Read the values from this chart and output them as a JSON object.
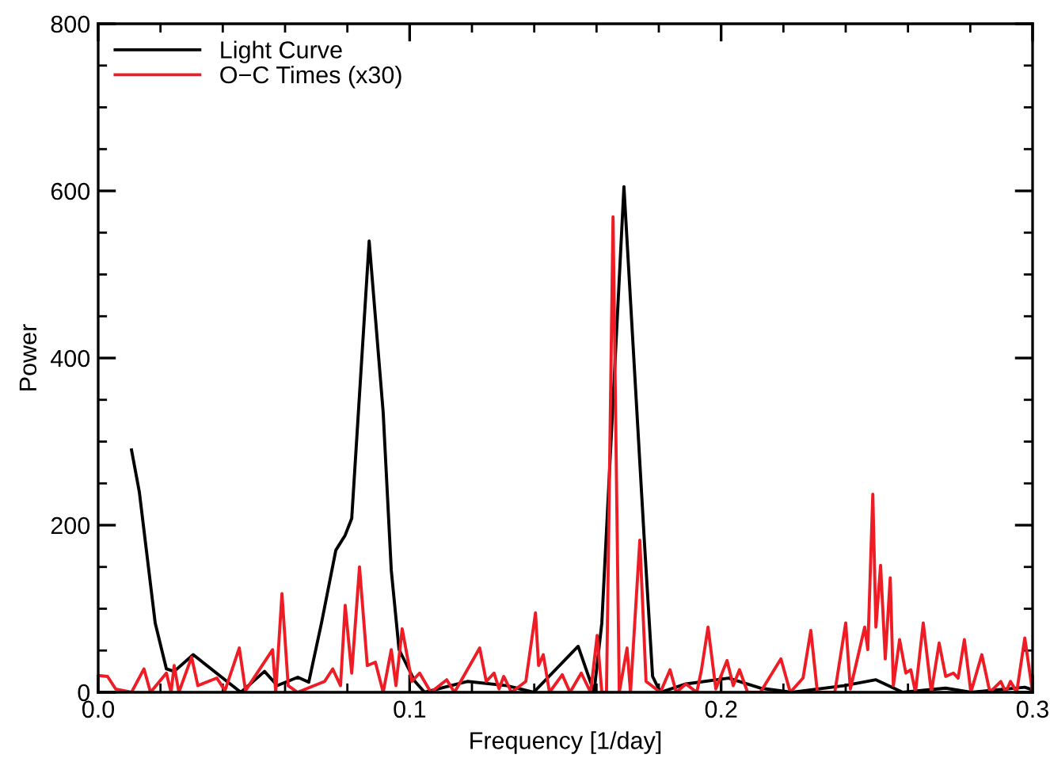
{
  "chart_data": {
    "type": "line",
    "xlabel": "Frequency [1/day]",
    "ylabel": "Power",
    "xlim": [
      0.0,
      0.3
    ],
    "xticks": [
      {
        "value": 0.0,
        "label": "0.0"
      },
      {
        "value": 0.1,
        "label": "0.1"
      },
      {
        "value": 0.2,
        "label": "0.2"
      },
      {
        "value": 0.3,
        "label": "0.3"
      }
    ],
    "ylim": [
      0,
      800
    ],
    "yticks": [
      0,
      200,
      400,
      600,
      800
    ],
    "grid": false,
    "legend": "top left",
    "marker": "none",
    "line_style": "solid",
    "series": [
      {
        "name": "Light Curve",
        "color": "#000000",
        "x": [
          0.0107,
          0.0132,
          0.0183,
          0.0219,
          0.0244,
          0.0305,
          0.0458,
          0.0534,
          0.0575,
          0.0641,
          0.0676,
          0.0717,
          0.0763,
          0.0793,
          0.0814,
          0.087,
          0.0915,
          0.0941,
          0.0966,
          0.1017,
          0.1048,
          0.1185,
          0.1312,
          0.1398,
          0.1541,
          0.1592,
          0.1617,
          0.1688,
          0.1754,
          0.178,
          0.1805,
          0.1887,
          0.2024,
          0.2126,
          0.2227,
          0.2395,
          0.2497,
          0.2583,
          0.2721,
          0.2802,
          0.2975,
          0.3
        ],
        "values": [
          290,
          240,
          83,
          28,
          25,
          45,
          0,
          25,
          8,
          18,
          12,
          83,
          170,
          188,
          208,
          540,
          335,
          146,
          51,
          13,
          0,
          13,
          8,
          0,
          55,
          0,
          83,
          605,
          178,
          19,
          0,
          10,
          17,
          5,
          0,
          8,
          15,
          0,
          5,
          0,
          6,
          3
        ]
      },
      {
        "name": "O−C Times (x30)",
        "color": "#ee1c25",
        "x": [
          0.0005,
          0.003,
          0.0056,
          0.0107,
          0.0147,
          0.0168,
          0.0219,
          0.0234,
          0.0244,
          0.0259,
          0.03,
          0.032,
          0.0381,
          0.0407,
          0.0453,
          0.0473,
          0.056,
          0.057,
          0.059,
          0.061,
          0.064,
          0.0727,
          0.0753,
          0.0778,
          0.0793,
          0.0814,
          0.0839,
          0.0864,
          0.089,
          0.0915,
          0.0941,
          0.0956,
          0.0976,
          0.1007,
          0.1032,
          0.1068,
          0.1119,
          0.1144,
          0.1225,
          0.1246,
          0.1271,
          0.1287,
          0.1302,
          0.1327,
          0.1373,
          0.1404,
          0.1414,
          0.1429,
          0.1449,
          0.149,
          0.1515,
          0.1551,
          0.1581,
          0.1602,
          0.1617,
          0.1632,
          0.1653,
          0.1673,
          0.1698,
          0.1709,
          0.1739,
          0.1759,
          0.1805,
          0.1836,
          0.1856,
          0.1887,
          0.1922,
          0.1937,
          0.1958,
          0.1983,
          0.2019,
          0.2039,
          0.2059,
          0.2085,
          0.2126,
          0.2192,
          0.2222,
          0.2263,
          0.2288,
          0.2309,
          0.2365,
          0.24,
          0.2415,
          0.2461,
          0.2471,
          0.2487,
          0.2497,
          0.2512,
          0.2527,
          0.2543,
          0.2553,
          0.2573,
          0.2593,
          0.2609,
          0.2624,
          0.2649,
          0.2675,
          0.27,
          0.2721,
          0.2746,
          0.2761,
          0.2781,
          0.2802,
          0.2837,
          0.2863,
          0.2898,
          0.2914,
          0.2929,
          0.2949,
          0.2975,
          0.3
        ],
        "values": [
          20,
          19,
          4,
          0,
          28,
          0,
          23,
          0,
          32,
          0,
          42,
          8,
          17,
          2,
          53,
          2,
          51,
          0,
          118,
          8,
          0,
          13,
          28,
          8,
          104,
          23,
          150,
          32,
          36,
          0,
          51,
          8,
          76,
          13,
          23,
          0,
          15,
          0,
          53,
          13,
          23,
          4,
          19,
          0,
          13,
          95,
          32,
          45,
          0,
          21,
          0,
          23,
          0,
          68,
          0,
          0,
          569,
          0,
          53,
          0,
          182,
          13,
          0,
          27,
          0,
          10,
          0,
          27,
          78,
          4,
          38,
          8,
          27,
          0,
          0,
          40,
          0,
          17,
          74,
          0,
          0,
          83,
          4,
          78,
          51,
          237,
          78,
          152,
          40,
          137,
          8,
          63,
          23,
          27,
          0,
          83,
          0,
          59,
          19,
          23,
          17,
          63,
          0,
          45,
          0,
          13,
          0,
          13,
          0,
          65,
          0
        ]
      }
    ]
  }
}
